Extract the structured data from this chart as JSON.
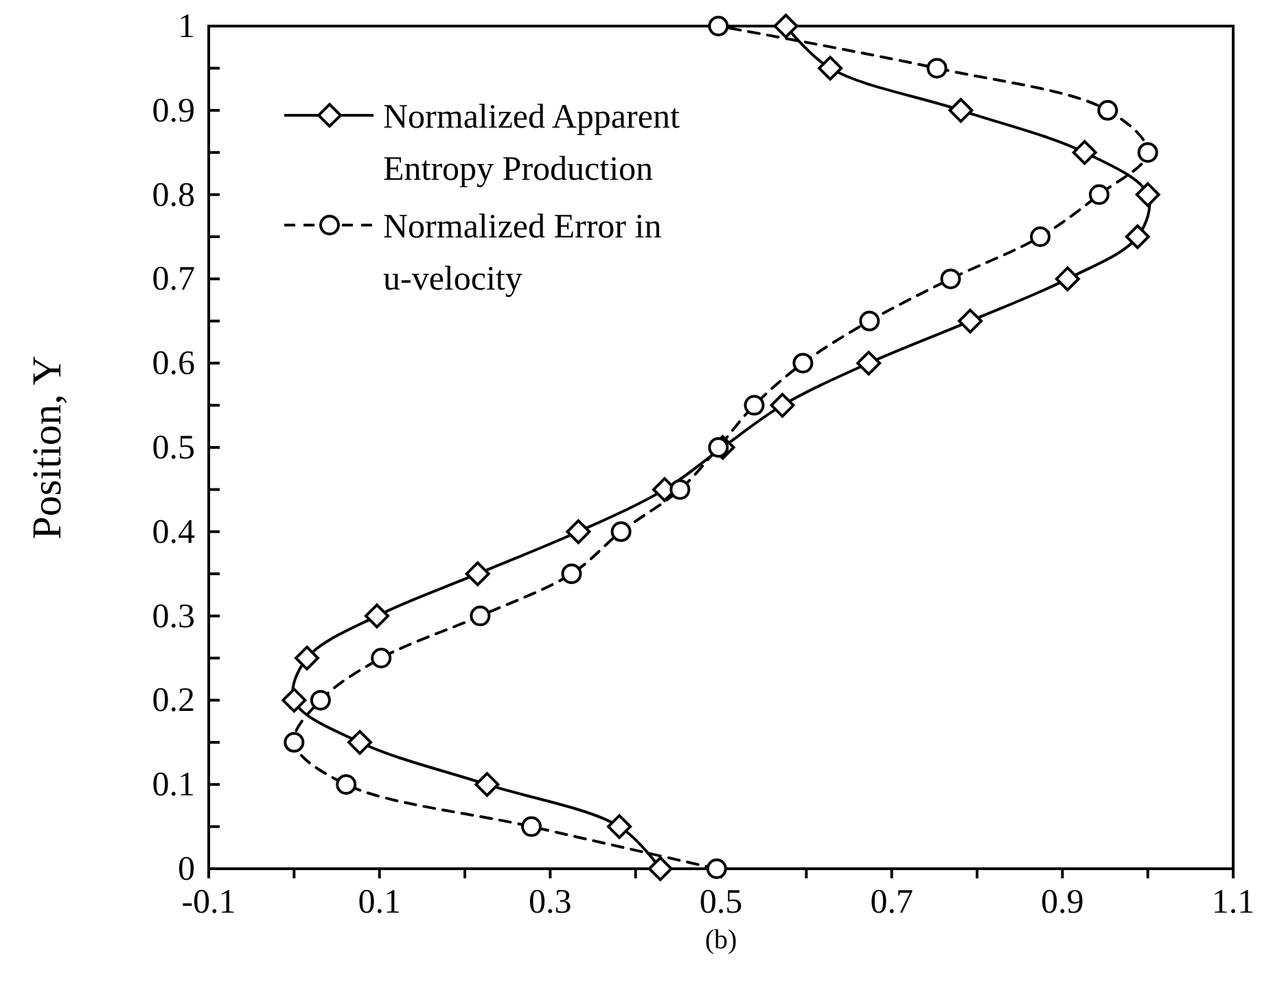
{
  "chart_data": {
    "type": "line",
    "xlabel": "(b)",
    "ylabel": "Position, Y",
    "xlim": [
      -0.1,
      1.1
    ],
    "xticks": [
      -0.1,
      {
        "value": 0,
        "label": null
      },
      0.1,
      {
        "value": 0.2,
        "label": null
      },
      0.3,
      {
        "value": 0.4,
        "label": null
      },
      0.5,
      {
        "value": 0.6,
        "label": null
      },
      0.7,
      {
        "value": 0.8,
        "label": null
      },
      0.9,
      {
        "value": 1.0,
        "label": null
      },
      1.1
    ],
    "ylim": [
      0,
      1
    ],
    "yticks": [
      0,
      {
        "value": 0.05,
        "label": null
      },
      0.1,
      {
        "value": 0.15,
        "label": null
      },
      0.2,
      {
        "value": 0.25,
        "label": null
      },
      0.3,
      {
        "value": 0.35,
        "label": null
      },
      0.4,
      {
        "value": 0.45,
        "label": null
      },
      0.5,
      {
        "value": 0.55,
        "label": null
      },
      0.6,
      {
        "value": 0.65,
        "label": null
      },
      0.7,
      {
        "value": 0.75,
        "label": null
      },
      0.8,
      {
        "value": 0.85,
        "label": null
      },
      0.9,
      {
        "value": 0.95,
        "label": null
      },
      1
    ],
    "grid": false,
    "legend": "top left",
    "series": [
      {
        "name": "Normalized Apparent Entropy Production",
        "color": "#000000",
        "marker": "diamond",
        "line_style": "solid",
        "x": [
          0.429,
          0.381,
          0.226,
          0.077,
          0.0,
          0.015,
          0.097,
          0.215,
          0.333,
          0.434,
          0.502,
          0.572,
          0.673,
          0.792,
          0.906,
          0.988,
          1.0,
          0.926,
          0.781,
          0.628,
          0.576
        ],
        "values": [
          0,
          0.05,
          0.1,
          0.15,
          0.2,
          0.25,
          0.3,
          0.35,
          0.4,
          0.45,
          0.5,
          0.55,
          0.6,
          0.65,
          0.7,
          0.75,
          0.8,
          0.85,
          0.9,
          0.95,
          1
        ]
      },
      {
        "name": "Normalized Error in u-velocity",
        "color": "#000000",
        "marker": "circle",
        "line_style": "dashed",
        "x": [
          0.495,
          0.278,
          0.061,
          0.0,
          0.031,
          0.102,
          0.218,
          0.325,
          0.383,
          0.452,
          0.497,
          0.539,
          0.596,
          0.674,
          0.769,
          0.874,
          0.943,
          1.0,
          0.953,
          0.753,
          0.497
        ],
        "values": [
          0,
          0.05,
          0.1,
          0.15,
          0.2,
          0.25,
          0.3,
          0.35,
          0.4,
          0.45,
          0.5,
          0.55,
          0.6,
          0.65,
          0.7,
          0.75,
          0.8,
          0.85,
          0.9,
          0.95,
          1
        ]
      }
    ]
  }
}
